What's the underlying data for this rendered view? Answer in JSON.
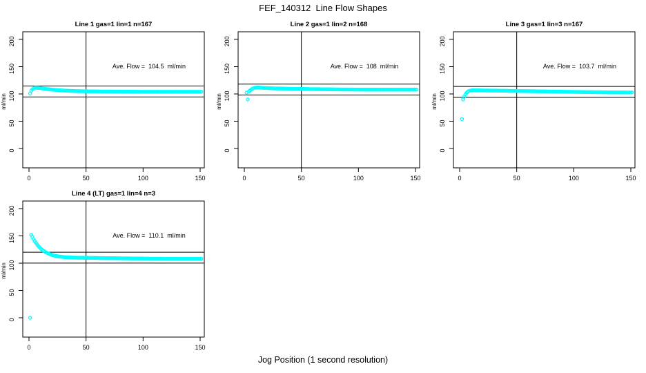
{
  "page": {
    "title": "FEF_140312  Line Flow Shapes",
    "xlabel": "Jog Position (1 second resolution)"
  },
  "colors": {
    "point": "#00FFFF",
    "axis": "#000000",
    "background": "#FFFFFF",
    "text": "#000000"
  },
  "chart_data": [
    {
      "type": "scatter",
      "title": "Line 1 gas=1 lin=1 n=167",
      "annotation": "Ave. Flow =  104.5  ml/min",
      "ave_flow": 104.5,
      "n": 167,
      "ylabel": "ml/min",
      "xticks": [
        0,
        50,
        100,
        150
      ],
      "yticks": [
        0,
        50,
        100,
        150,
        200
      ],
      "xlim": [
        -5,
        153
      ],
      "ylim": [
        -35,
        214
      ],
      "hlines": [
        94.5,
        114.5
      ],
      "vline": 50,
      "marker": "open-circle",
      "x_start": 1,
      "y": [
        100.5,
        106,
        108.5,
        110.2,
        111,
        111.3,
        111.3,
        111.1,
        110.9,
        110.6,
        110.3,
        110,
        109.7,
        109.4,
        109.2,
        108.9,
        108.7,
        108.4,
        108.2,
        108,
        107.8,
        107.6,
        107.4,
        107.2,
        107.1,
        106.9,
        106.8,
        106.6,
        106.5,
        106.4,
        106.2,
        106.1,
        106,
        105.9,
        105.8,
        105.7,
        105.6,
        105.6,
        105.5,
        105.4,
        105.3,
        105.3,
        105.2,
        105.2,
        105.1,
        105.1,
        105,
        105,
        104.9,
        104.9,
        104.9,
        104.8,
        104.8,
        104.8,
        104.7,
        104.7,
        104.7,
        104.7,
        104.6,
        104.6,
        104.6,
        104.6,
        104.5,
        104.5,
        104.5,
        104.5,
        104.5,
        104.4,
        104.4,
        104.4,
        104.4,
        104.4,
        104.4,
        104.3,
        104.3,
        104.3,
        104.3,
        104.3,
        104.3,
        104.3,
        104.2,
        104.2,
        104.2,
        104.2,
        104.2,
        104.2,
        104.2,
        104.2,
        104.1,
        104.1,
        104.1,
        104.1,
        104.1,
        104.1,
        104.1,
        104.1,
        104,
        104,
        104,
        104,
        104,
        103.9,
        104.1,
        104,
        103.9,
        104,
        104.1,
        104,
        103.9,
        104,
        104,
        104.1,
        103.9,
        104,
        104,
        103.9,
        104.1,
        104,
        104,
        103.9,
        104,
        104,
        104.1,
        103.9,
        104,
        104,
        103.9,
        104,
        104.1,
        104,
        103.9,
        104,
        104,
        104.1,
        103.9,
        104,
        104,
        103.9,
        104,
        104.1,
        104,
        103.9,
        104,
        104,
        104,
        103.9,
        104.1,
        104,
        103.9,
        104,
        104
      ]
    },
    {
      "type": "scatter",
      "title": "Line 2 gas=1 lin=2 n=168",
      "annotation": "Ave. Flow =  108  ml/min",
      "ave_flow": 108,
      "n": 168,
      "ylabel": "ml/min",
      "xticks": [
        0,
        50,
        100,
        150
      ],
      "yticks": [
        0,
        50,
        100,
        150,
        200
      ],
      "xlim": [
        -5,
        153
      ],
      "ylim": [
        -35,
        214
      ],
      "hlines": [
        98,
        118
      ],
      "vline": 50,
      "marker": "open-circle",
      "x_start": 2,
      "y": [
        102.5,
        90,
        104.5,
        106.5,
        108,
        109.5,
        110.5,
        111.2,
        111.6,
        111.8,
        111.8,
        111.7,
        111.6,
        111.4,
        111.3,
        111.1,
        111,
        110.9,
        110.8,
        110.7,
        110.6,
        110.5,
        110.4,
        110.3,
        110.3,
        110.2,
        110.1,
        110.1,
        110,
        110,
        109.9,
        109.9,
        109.8,
        109.8,
        109.7,
        109.7,
        109.6,
        109.6,
        109.5,
        109.5,
        109.5,
        109.4,
        109.4,
        109.4,
        109.3,
        109.3,
        109.3,
        109.2,
        109.2,
        109.2,
        109.1,
        109.1,
        109.1,
        109,
        109,
        109,
        108.9,
        108.9,
        108.9,
        108.9,
        108.8,
        108.8,
        108.8,
        108.8,
        108.7,
        108.7,
        108.7,
        108.7,
        108.6,
        108.6,
        108.6,
        108.6,
        108.5,
        108.5,
        108.5,
        108.5,
        108.5,
        108.4,
        108.4,
        108.4,
        108.4,
        108.4,
        108.3,
        108.3,
        108.3,
        108.3,
        108.3,
        108.2,
        108.2,
        108.2,
        108.2,
        108.2,
        108.2,
        108.1,
        108.1,
        108.1,
        108.1,
        108.1,
        108.1,
        108,
        108,
        108.1,
        107.9,
        108,
        108,
        108.1,
        107.9,
        108,
        108,
        107.9,
        108,
        108.1,
        108,
        107.9,
        108,
        108,
        108.1,
        107.9,
        108,
        108,
        107.9,
        108,
        108.1,
        108,
        107.9,
        108,
        108,
        108.1,
        107.9,
        108,
        108,
        107.9,
        108,
        108.1,
        108,
        107.9,
        108,
        108,
        108.1,
        107.9,
        108,
        108,
        107.9,
        108,
        108.1,
        108,
        107.9,
        108,
        108,
        108
      ]
    },
    {
      "type": "scatter",
      "title": "Line 3 gas=1 lin=3 n=167",
      "annotation": "Ave. Flow =  103.7  ml/min",
      "ave_flow": 103.7,
      "n": 167,
      "ylabel": "ml/min",
      "xticks": [
        0,
        50,
        100,
        150
      ],
      "yticks": [
        0,
        50,
        100,
        150,
        200
      ],
      "xlim": [
        -5,
        153
      ],
      "ylim": [
        -35,
        214
      ],
      "hlines": [
        93.7,
        113.7
      ],
      "vline": 50,
      "marker": "open-circle",
      "x_start": 2,
      "y": [
        54,
        90,
        95,
        99,
        102,
        104,
        105.3,
        106,
        106.4,
        106.6,
        106.7,
        106.7,
        106.7,
        106.6,
        106.6,
        106.6,
        106.5,
        106.5,
        106.5,
        106.4,
        106.4,
        106.4,
        106.3,
        106.3,
        106.3,
        106.2,
        106.2,
        106.2,
        106.1,
        106.1,
        106.1,
        106,
        106,
        106,
        105.9,
        105.9,
        105.9,
        105.8,
        105.8,
        105.8,
        105.7,
        105.7,
        105.7,
        105.6,
        105.6,
        105.6,
        105.5,
        105.5,
        105.5,
        105.4,
        105.4,
        105.4,
        105.3,
        105.3,
        105.3,
        105.2,
        105.2,
        105.2,
        105.1,
        105.1,
        105.1,
        105,
        105,
        105,
        104.9,
        104.9,
        104.9,
        104.8,
        104.8,
        104.8,
        104.7,
        104.7,
        104.7,
        104.6,
        104.6,
        104.6,
        104.5,
        104.5,
        104.5,
        104.4,
        104.4,
        104.4,
        104.3,
        104.3,
        104.3,
        104.2,
        104.2,
        104.2,
        104.1,
        104.1,
        104.1,
        104,
        104,
        104,
        103.9,
        103.9,
        103.9,
        103.8,
        103.8,
        103.8,
        103.7,
        103.7,
        103.7,
        103.6,
        103.6,
        103.6,
        103.5,
        103.5,
        103.5,
        103.4,
        103.4,
        103.4,
        103.3,
        103.3,
        103.3,
        103.3,
        103.2,
        103.2,
        103.2,
        103.2,
        103.1,
        103.1,
        103.1,
        103.1,
        103,
        103,
        103,
        103,
        103,
        102.9,
        102.9,
        102.9,
        102.9,
        102.9,
        102.9,
        102.8,
        102.8,
        102.8,
        102.8,
        102.8,
        102.8,
        102.8,
        102.8,
        102.8,
        102.7,
        102.7,
        102.7,
        102.7,
        102.7,
        102.7
      ]
    },
    {
      "type": "scatter",
      "title": "Line 4 (LT) gas=1 lin=4 n=3",
      "annotation": "Ave. Flow =  110.1  ml/min",
      "ave_flow": 110.1,
      "n": 3,
      "ylabel": "ml/min",
      "xticks": [
        0,
        50,
        100,
        150
      ],
      "yticks": [
        0,
        50,
        100,
        150,
        200
      ],
      "xlim": [
        -5,
        153
      ],
      "ylim": [
        -35,
        214
      ],
      "hlines": [
        100.1,
        120.1
      ],
      "vline": 50,
      "marker": "open-circle",
      "x_start": 1,
      "y": [
        0,
        152,
        148.3,
        144.2,
        140.6,
        137.4,
        134.5,
        131.9,
        129.6,
        127.5,
        125.6,
        123.9,
        122.4,
        121,
        119.8,
        118.7,
        117.7,
        116.8,
        116,
        115.3,
        114.6,
        114.1,
        113.6,
        113.1,
        112.7,
        112.4,
        112.1,
        111.8,
        111.5,
        111.3,
        111.1,
        111,
        110.8,
        110.7,
        110.6,
        110.5,
        110.4,
        110.3,
        110.2,
        110.2,
        110.1,
        110.1,
        110,
        110,
        110,
        109.9,
        109.9,
        109.9,
        109.8,
        109.8,
        109.8,
        109.8,
        109.7,
        109.7,
        109.7,
        109.6,
        109.6,
        109.6,
        109.5,
        109.5,
        109.5,
        109.5,
        109.4,
        109.4,
        109.4,
        109.3,
        109.3,
        109.3,
        109.2,
        109.2,
        109.2,
        109.2,
        109.1,
        109.1,
        109.1,
        109,
        109,
        109,
        109,
        108.9,
        108.9,
        108.9,
        108.9,
        108.8,
        108.8,
        108.8,
        108.8,
        108.7,
        108.7,
        108.7,
        108.7,
        108.6,
        108.6,
        108.6,
        108.6,
        108.5,
        108.5,
        108.5,
        108.5,
        108.5,
        108.4,
        108.4,
        108.4,
        108.4,
        108.4,
        108.3,
        108.3,
        108.3,
        108.3,
        108.3,
        108.3,
        108.2,
        108.2,
        108.2,
        108.2,
        108.2,
        108.2,
        108.1,
        108.1,
        108.1,
        108.1,
        108.1,
        108.1,
        108.1,
        108,
        108,
        108,
        108,
        108,
        108,
        108,
        108,
        107.9,
        107.9,
        107.9,
        108,
        108.1,
        107.9,
        108,
        108,
        108,
        107.9,
        108,
        108.1,
        108,
        107.9,
        108,
        108,
        107.9,
        108,
        108
      ]
    }
  ]
}
